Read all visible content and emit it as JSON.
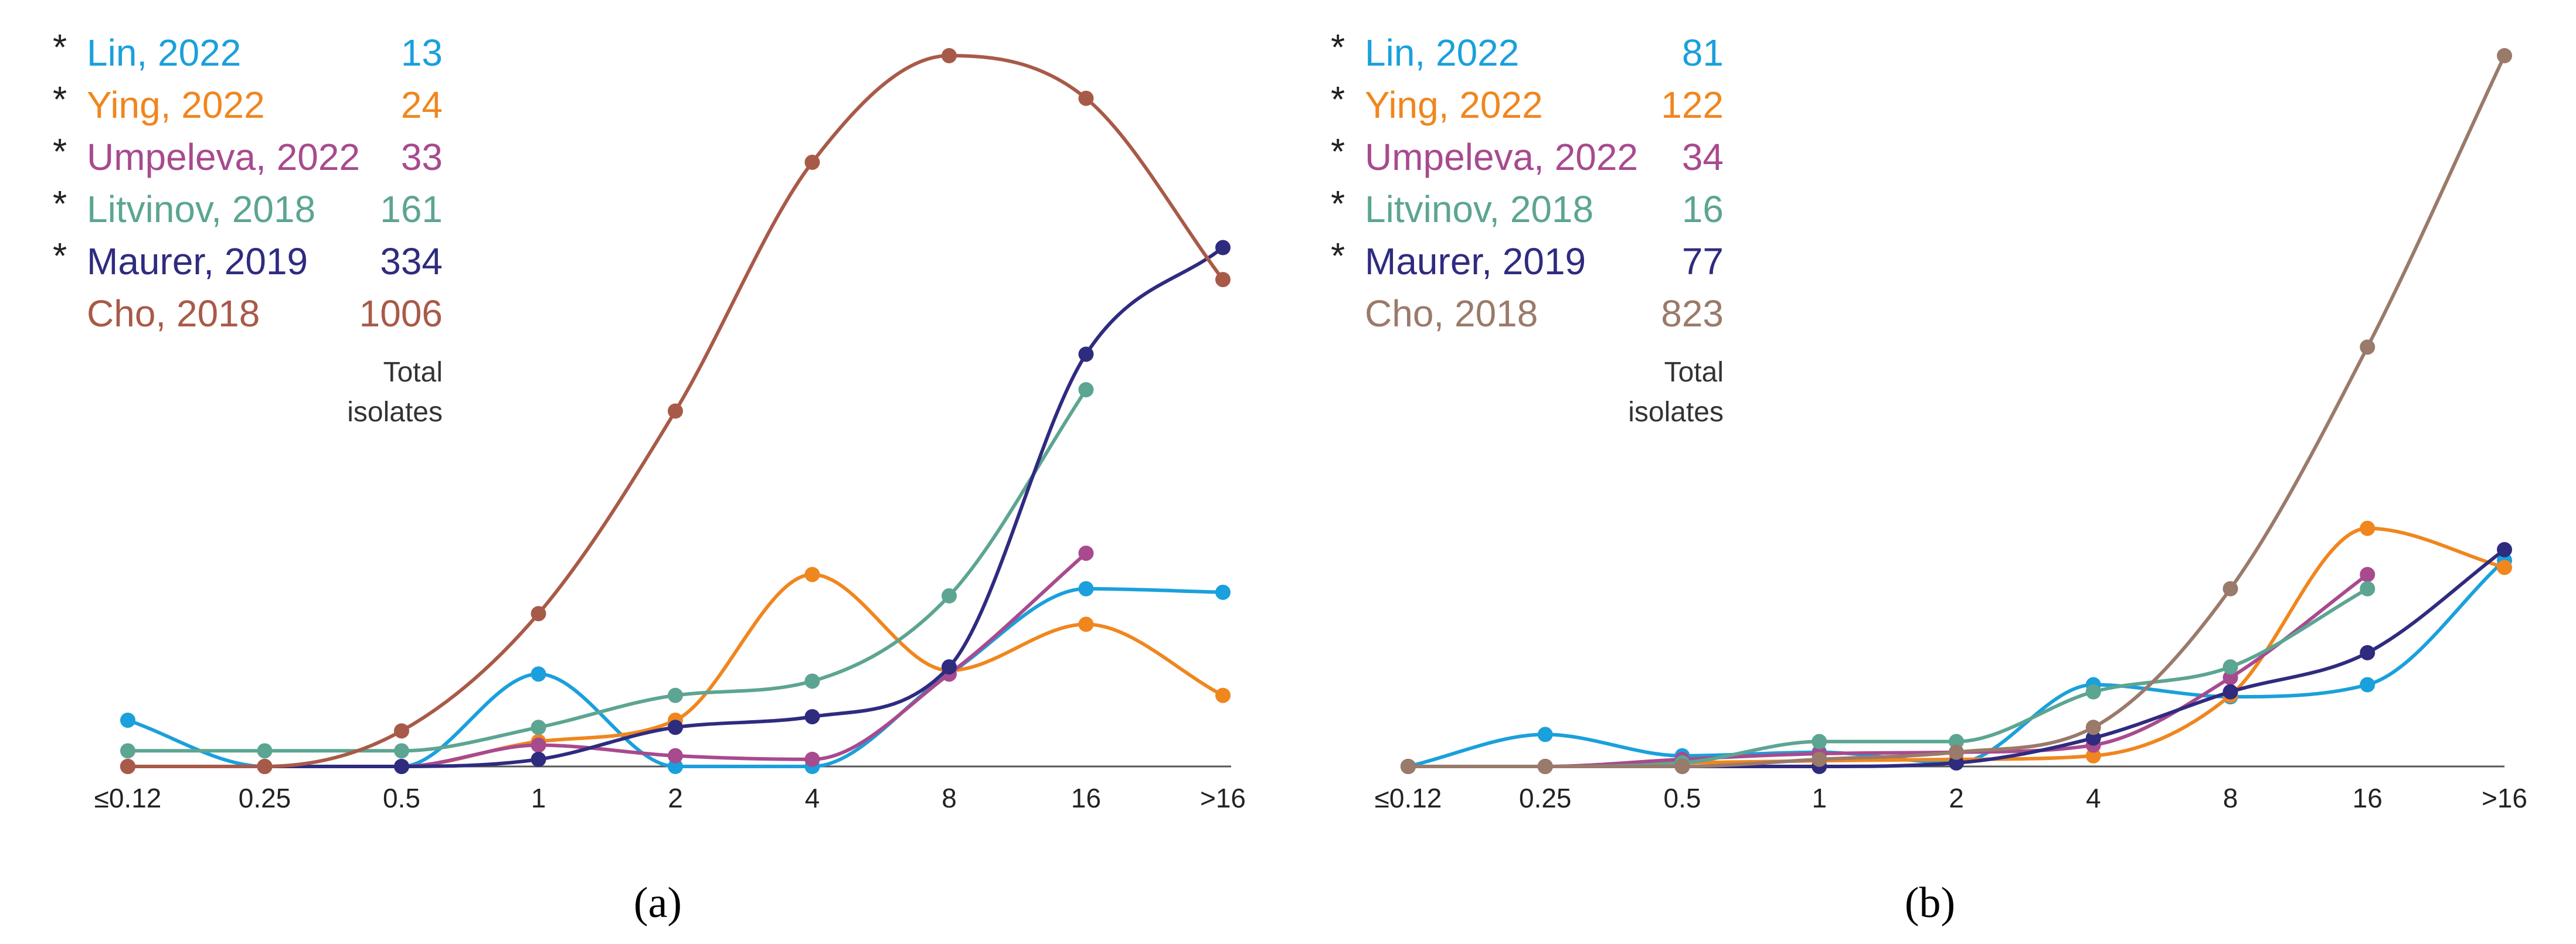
{
  "caption_a": "(a)",
  "caption_b": "(b)",
  "total_label_line1": "Total",
  "total_label_line2": "isolates",
  "asterisk": "*",
  "chart_data": [
    {
      "id": "a",
      "type": "line",
      "title": "",
      "xlabel": "",
      "ylabel": "",
      "categories": [
        "≤0.12",
        "0.25",
        "0.5",
        "1",
        "2",
        "4",
        "8",
        "16",
        ">16"
      ],
      "ylim": [
        0,
        1
      ],
      "series": [
        {
          "name": "Lin, 2022",
          "total": "13",
          "starred": true,
          "color": "#1aa0dc",
          "values": [
            0.065,
            0,
            0,
            0.13,
            0,
            0,
            0.13,
            0.25,
            0.245
          ]
        },
        {
          "name": "Ying, 2022",
          "total": "24",
          "starred": true,
          "color": "#f0861e",
          "values": [
            0,
            0,
            0,
            0.035,
            0.065,
            0.27,
            0.135,
            0.2,
            0.1
          ]
        },
        {
          "name": "Umpeleva, 2022",
          "total": "33",
          "starred": true,
          "color": "#a84a8e",
          "values": [
            0,
            0,
            0,
            0.03,
            0.015,
            0.01,
            0.13,
            0.3,
            null
          ]
        },
        {
          "name": "Litvinov, 2018",
          "total": "161",
          "starred": true,
          "color": "#5ca592",
          "values": [
            0.022,
            0.022,
            0.022,
            0.055,
            0.1,
            0.12,
            0.24,
            0.53,
            null
          ]
        },
        {
          "name": "Maurer, 2019",
          "total": "334",
          "starred": true,
          "color": "#2f2b7f",
          "values": [
            0,
            0,
            0,
            0.01,
            0.055,
            0.07,
            0.14,
            0.58,
            0.73
          ]
        },
        {
          "name": "Cho, 2018",
          "total": "1006",
          "starred": false,
          "color": "#a85a48",
          "values": [
            0,
            0,
            0.05,
            0.215,
            0.5,
            0.85,
            1.0,
            0.94,
            0.685
          ]
        }
      ]
    },
    {
      "id": "b",
      "type": "line",
      "title": "",
      "xlabel": "",
      "ylabel": "",
      "categories": [
        "≤0.12",
        "0.25",
        "0.5",
        "1",
        "2",
        "4",
        "8",
        "16",
        ">16"
      ],
      "ylim": [
        0,
        1
      ],
      "series": [
        {
          "name": "Lin, 2022",
          "total": "81",
          "starred": true,
          "color": "#1aa0dc",
          "values": [
            0,
            0.045,
            0.015,
            0.02,
            0.005,
            0.115,
            0.098,
            0.115,
            0.29
          ]
        },
        {
          "name": "Ying, 2022",
          "total": "122",
          "starred": true,
          "color": "#f0861e",
          "values": [
            0,
            0,
            0.005,
            0.008,
            0.01,
            0.015,
            0.1,
            0.335,
            0.28
          ]
        },
        {
          "name": "Umpeleva, 2022",
          "total": "34",
          "starred": true,
          "color": "#a84a8e",
          "values": [
            0,
            0,
            0.01,
            0.018,
            0.02,
            0.03,
            0.125,
            0.27,
            null
          ]
        },
        {
          "name": "Litvinov, 2018",
          "total": "16",
          "starred": true,
          "color": "#5ca592",
          "values": [
            0,
            0,
            0.005,
            0.035,
            0.035,
            0.105,
            0.14,
            0.25,
            null
          ]
        },
        {
          "name": "Maurer, 2019",
          "total": "77",
          "starred": true,
          "color": "#2f2b7f",
          "values": [
            0,
            0,
            0,
            0,
            0.005,
            0.04,
            0.105,
            0.16,
            0.305
          ]
        },
        {
          "name": "Cho, 2018",
          "total": "823",
          "starred": false,
          "color": "#9a7a6a",
          "values": [
            0,
            0,
            0,
            0.01,
            0.02,
            0.055,
            0.25,
            0.59,
            1.0
          ]
        }
      ]
    }
  ]
}
